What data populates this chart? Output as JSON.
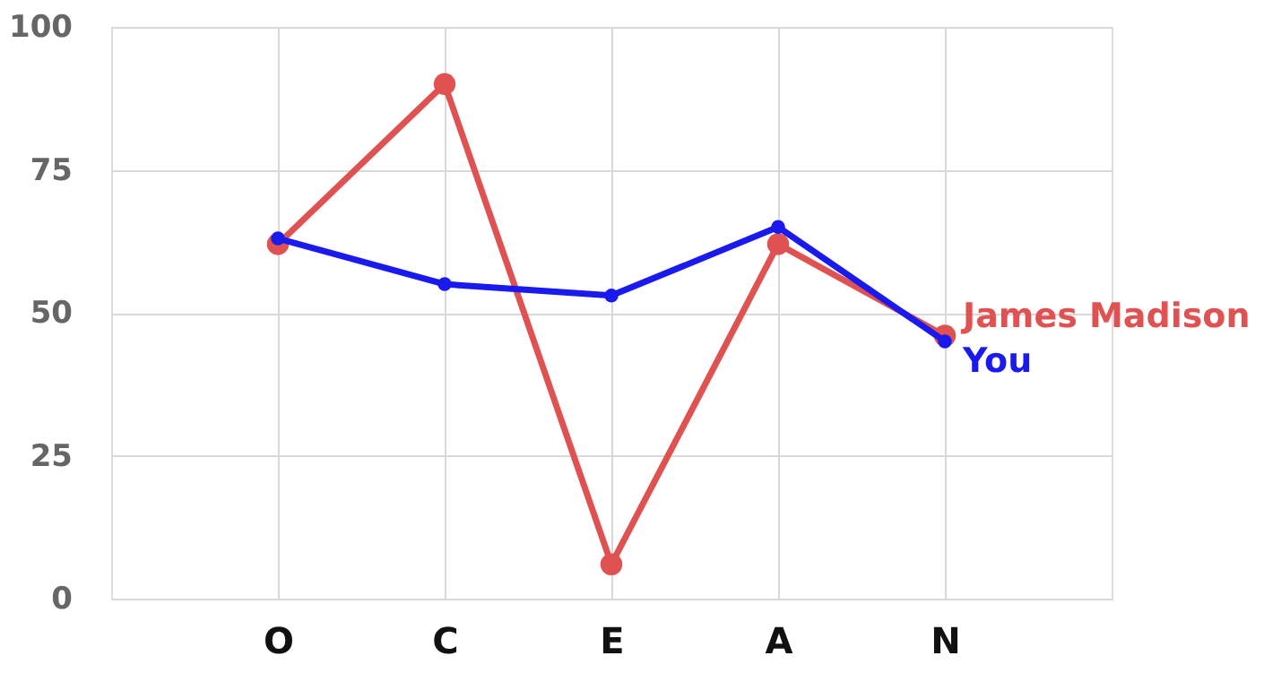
{
  "chart_data": {
    "type": "line",
    "categories": [
      "O",
      "C",
      "E",
      "A",
      "N"
    ],
    "series": [
      {
        "name": "James Madison",
        "color": "#e05252",
        "values": [
          62,
          90,
          6,
          62,
          46
        ]
      },
      {
        "name": "You",
        "color": "#1a1aee",
        "values": [
          63,
          55,
          53,
          65,
          45
        ]
      }
    ],
    "ylim": [
      0,
      100
    ],
    "yticks": [
      0,
      25,
      50,
      75,
      100
    ],
    "grid": true,
    "marker": "circle",
    "line_style": "solid"
  }
}
